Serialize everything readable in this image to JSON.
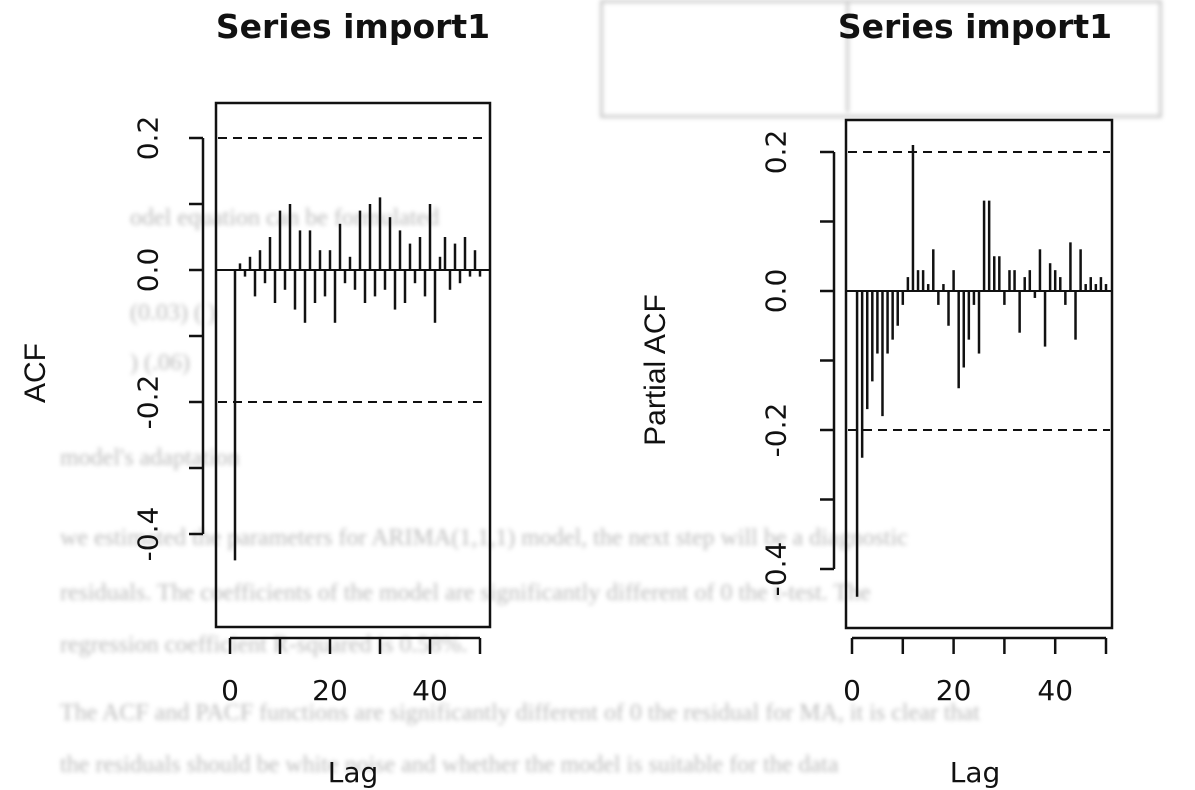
{
  "chart_data": [
    {
      "type": "bar",
      "title": "Series import1",
      "xlabel": "Lag",
      "ylabel": "ACF",
      "xlim": [
        0,
        50
      ],
      "ylim": [
        -0.48,
        0.25
      ],
      "x_ticks": [
        "0",
        "20",
        "40"
      ],
      "x_tick_values": [
        0,
        10,
        20,
        30,
        40,
        50
      ],
      "y_ticks": [
        "-0.4",
        "-0.2",
        "0.0",
        "0.2"
      ],
      "y_tick_values": [
        -0.4,
        -0.3,
        -0.2,
        -0.1,
        0.0,
        0.1,
        0.2
      ],
      "confidence_band": [
        -0.2,
        0.2
      ],
      "x": [
        1,
        2,
        3,
        4,
        5,
        6,
        7,
        8,
        9,
        10,
        11,
        12,
        13,
        14,
        15,
        16,
        17,
        18,
        19,
        20,
        21,
        22,
        23,
        24,
        25,
        26,
        27,
        28,
        29,
        30,
        31,
        32,
        33,
        34,
        35,
        36,
        37,
        38,
        39,
        40,
        41,
        42,
        43,
        44,
        45,
        46,
        47,
        48,
        49,
        50
      ],
      "values": [
        -0.44,
        0.01,
        -0.01,
        0.02,
        -0.04,
        0.03,
        -0.02,
        0.05,
        -0.05,
        0.09,
        -0.03,
        0.1,
        -0.06,
        0.06,
        -0.08,
        0.06,
        -0.05,
        0.03,
        -0.04,
        0.03,
        -0.08,
        0.07,
        -0.02,
        0.02,
        -0.03,
        0.09,
        -0.05,
        0.1,
        -0.04,
        0.11,
        -0.03,
        0.08,
        -0.06,
        0.06,
        -0.05,
        0.04,
        -0.02,
        0.05,
        -0.04,
        0.1,
        -0.08,
        0.02,
        0.05,
        -0.03,
        0.04,
        -0.02,
        0.05,
        -0.01,
        0.03,
        -0.01
      ]
    },
    {
      "type": "bar",
      "title": "Series import1",
      "xlabel": "Lag",
      "ylabel": "Partial ACF",
      "xlim": [
        0,
        50
      ],
      "ylim": [
        -0.48,
        0.25
      ],
      "x_ticks": [
        "0",
        "20",
        "40"
      ],
      "x_tick_values": [
        0,
        10,
        20,
        30,
        40,
        50
      ],
      "y_ticks": [
        "-0.4",
        "-0.2",
        "0.0",
        "0.2"
      ],
      "y_tick_values": [
        -0.4,
        -0.3,
        -0.2,
        -0.1,
        0.0,
        0.1,
        0.2
      ],
      "confidence_band": [
        -0.2,
        0.2
      ],
      "x": [
        1,
        2,
        3,
        4,
        5,
        6,
        7,
        8,
        9,
        10,
        11,
        12,
        13,
        14,
        15,
        16,
        17,
        18,
        19,
        20,
        21,
        22,
        23,
        24,
        25,
        26,
        27,
        28,
        29,
        30,
        31,
        32,
        33,
        34,
        35,
        36,
        37,
        38,
        39,
        40,
        41,
        42,
        43,
        44,
        45,
        46,
        47,
        48,
        49,
        50
      ],
      "values": [
        -0.44,
        -0.24,
        -0.17,
        -0.13,
        -0.09,
        -0.18,
        -0.09,
        -0.07,
        -0.05,
        -0.02,
        0.02,
        0.21,
        0.03,
        0.03,
        0.01,
        0.06,
        -0.02,
        0.01,
        -0.05,
        0.03,
        -0.14,
        -0.11,
        -0.07,
        -0.02,
        -0.09,
        0.13,
        0.13,
        0.05,
        0.05,
        -0.02,
        0.03,
        0.03,
        -0.06,
        0.02,
        0.03,
        -0.01,
        0.06,
        -0.08,
        0.04,
        0.03,
        0.02,
        -0.02,
        0.07,
        -0.07,
        0.06,
        0.01,
        0.02,
        0.01,
        0.02,
        0.01
      ]
    }
  ]
}
